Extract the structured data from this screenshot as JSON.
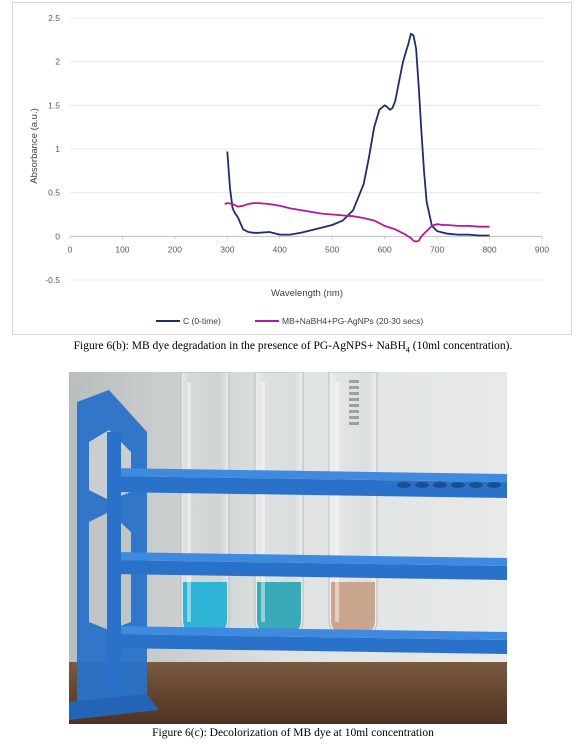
{
  "chart_data": {
    "type": "line",
    "title": "",
    "xlabel": "Wavelength (nm)",
    "ylabel": "Absorbance (a.u.)",
    "xlim": [
      0,
      900
    ],
    "ylim": [
      -0.5,
      2.5
    ],
    "x_ticks": [
      "0",
      "100",
      "200",
      "300",
      "400",
      "500",
      "600",
      "700",
      "800",
      "900"
    ],
    "y_ticks": [
      "2.5",
      "2",
      "1.5",
      "1",
      "0.5",
      "0",
      "-0.5"
    ],
    "grid": "horizontal",
    "legend_position": "bottom",
    "series": [
      {
        "name": "C (0-time)",
        "color": "#1f2d6b",
        "x": [
          300,
          305,
          310,
          315,
          320,
          325,
          330,
          340,
          350,
          360,
          380,
          400,
          420,
          440,
          460,
          480,
          500,
          520,
          540,
          560,
          570,
          580,
          590,
          600,
          605,
          610,
          615,
          620,
          625,
          630,
          635,
          640,
          645,
          650,
          655,
          660,
          665,
          670,
          675,
          680,
          690,
          700,
          720,
          740,
          760,
          780,
          800
        ],
        "y": [
          0.97,
          0.55,
          0.32,
          0.26,
          0.22,
          0.15,
          0.08,
          0.05,
          0.04,
          0.04,
          0.05,
          0.02,
          0.02,
          0.04,
          0.07,
          0.1,
          0.13,
          0.18,
          0.3,
          0.6,
          0.9,
          1.25,
          1.45,
          1.5,
          1.48,
          1.45,
          1.47,
          1.55,
          1.7,
          1.85,
          2.0,
          2.1,
          2.2,
          2.32,
          2.3,
          2.15,
          1.7,
          1.2,
          0.75,
          0.4,
          0.12,
          0.06,
          0.03,
          0.02,
          0.02,
          0.01,
          0.01
        ]
      },
      {
        "name": "MB+NaBH4+PG-AgNPs (20-30 secs)",
        "color": "#b5179e",
        "x": [
          295,
          300,
          310,
          320,
          330,
          340,
          350,
          360,
          380,
          400,
          420,
          440,
          460,
          480,
          500,
          520,
          540,
          560,
          580,
          600,
          610,
          620,
          630,
          640,
          650,
          655,
          660,
          665,
          670,
          680,
          690,
          700,
          710,
          720,
          740,
          760,
          780,
          800
        ],
        "y": [
          0.37,
          0.38,
          0.37,
          0.34,
          0.35,
          0.37,
          0.38,
          0.38,
          0.37,
          0.35,
          0.32,
          0.3,
          0.28,
          0.26,
          0.25,
          0.24,
          0.23,
          0.21,
          0.18,
          0.12,
          0.1,
          0.08,
          0.05,
          0.02,
          -0.02,
          -0.05,
          -0.06,
          -0.05,
          0.0,
          0.06,
          0.12,
          0.14,
          0.13,
          0.13,
          0.12,
          0.12,
          0.11,
          0.11
        ]
      }
    ]
  },
  "captions": {
    "fig_b_prefix": "Figure 6(b): MB dye degradation in the presence of PG-AgNPS+ NaBH",
    "fig_b_sub": "4",
    "fig_b_suffix": " (10ml concentration).",
    "fig_c": "Figure 6(c): Decolorization of MB dye at 10ml concentration"
  },
  "photo": {
    "tube_colors": [
      "#2fb3d6",
      "#3aa9b8",
      "#c9a58e"
    ],
    "rack_color": "#2a72c9",
    "wall_color": "#d8dcdc",
    "table_color": "#6b4a33"
  }
}
